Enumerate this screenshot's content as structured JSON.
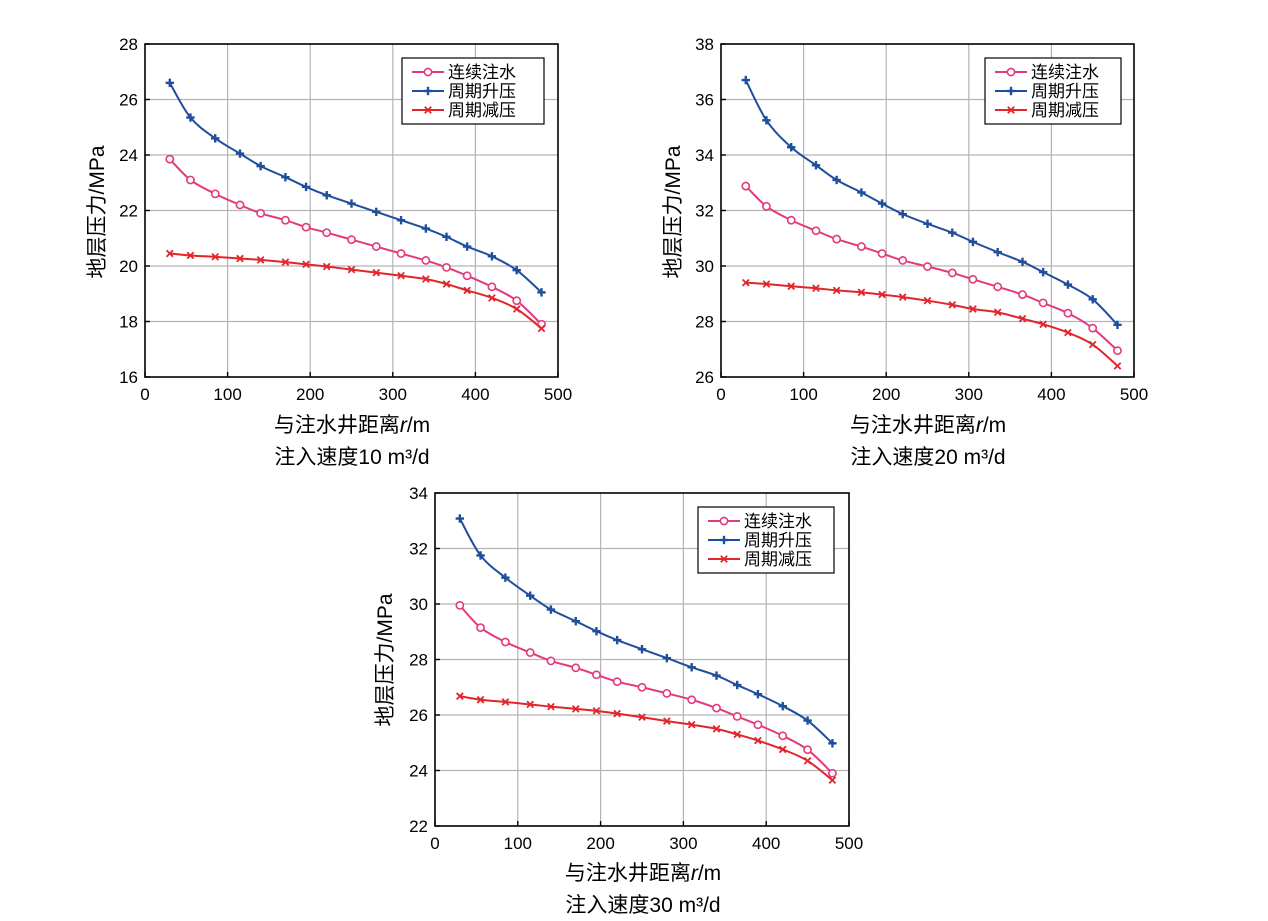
{
  "series_styles": [
    {
      "key": "continuous",
      "color": "#e4397d",
      "marker": "circle"
    },
    {
      "key": "cyclic_up",
      "color": "#1f4e9c",
      "marker": "plus"
    },
    {
      "key": "cyclic_down",
      "color": "#e0262c",
      "marker": "x"
    }
  ],
  "chart_data": [
    {
      "type": "line",
      "title": "",
      "xlabel_prefix": "与注水井距离",
      "xlabel_var": "r",
      "xlabel_unit": "/m",
      "subtitle": "注入速度10 m³/d",
      "ylabel": "地层压力/MPa",
      "xlim": [
        0,
        500
      ],
      "ylim": [
        16,
        28
      ],
      "xticks": [
        0,
        100,
        200,
        300,
        400,
        500
      ],
      "yticks": [
        16,
        18,
        20,
        22,
        24,
        26,
        28
      ],
      "grid": true,
      "legend": "top-right",
      "x": [
        30,
        55,
        85,
        115,
        140,
        170,
        195,
        220,
        250,
        280,
        310,
        340,
        365,
        390,
        420,
        450,
        480
      ],
      "series": [
        {
          "name": "连续注水",
          "values": [
            23.85,
            23.1,
            22.6,
            22.2,
            21.9,
            21.65,
            21.4,
            21.2,
            20.95,
            20.7,
            20.45,
            20.2,
            19.95,
            19.65,
            19.25,
            18.75,
            17.9
          ]
        },
        {
          "name": "周期升压",
          "values": [
            26.6,
            25.35,
            24.6,
            24.05,
            23.6,
            23.2,
            22.85,
            22.55,
            22.25,
            21.95,
            21.65,
            21.35,
            21.05,
            20.7,
            20.35,
            19.85,
            19.05
          ]
        },
        {
          "name": "周期减压",
          "values": [
            20.45,
            20.38,
            20.33,
            20.27,
            20.22,
            20.14,
            20.06,
            19.98,
            19.87,
            19.76,
            19.65,
            19.53,
            19.35,
            19.12,
            18.85,
            18.45,
            17.75
          ]
        }
      ]
    },
    {
      "type": "line",
      "title": "",
      "xlabel_prefix": "与注水井距离",
      "xlabel_var": "r",
      "xlabel_unit": "/m",
      "subtitle": "注入速度20 m³/d",
      "ylabel": "地层压力/MPa",
      "xlim": [
        0,
        500
      ],
      "ylim": [
        26,
        38
      ],
      "xticks": [
        0,
        100,
        200,
        300,
        400,
        500
      ],
      "yticks": [
        26,
        28,
        30,
        32,
        34,
        36,
        38
      ],
      "grid": true,
      "legend": "top-right",
      "x": [
        30,
        55,
        85,
        115,
        140,
        170,
        195,
        220,
        250,
        280,
        305,
        335,
        365,
        390,
        420,
        450,
        480
      ],
      "series": [
        {
          "name": "连续注水",
          "values": [
            32.88,
            32.15,
            31.65,
            31.27,
            30.97,
            30.7,
            30.45,
            30.2,
            29.98,
            29.75,
            29.52,
            29.25,
            28.97,
            28.67,
            28.3,
            27.76,
            26.95
          ]
        },
        {
          "name": "周期升压",
          "values": [
            36.7,
            35.25,
            34.28,
            33.63,
            33.1,
            32.65,
            32.25,
            31.87,
            31.52,
            31.2,
            30.87,
            30.5,
            30.15,
            29.78,
            29.33,
            28.8,
            27.88
          ]
        },
        {
          "name": "周期减压",
          "values": [
            29.4,
            29.35,
            29.27,
            29.2,
            29.12,
            29.05,
            28.97,
            28.88,
            28.75,
            28.6,
            28.45,
            28.33,
            28.1,
            27.9,
            27.6,
            27.17,
            26.4
          ]
        }
      ]
    },
    {
      "type": "line",
      "title": "",
      "xlabel_prefix": "与注水井距离",
      "xlabel_var": "r",
      "xlabel_unit": "/m",
      "subtitle": "注入速度30 m³/d",
      "ylabel": "地层压力/MPa",
      "xlim": [
        0,
        500
      ],
      "ylim": [
        22,
        34
      ],
      "xticks": [
        0,
        100,
        200,
        300,
        400,
        500
      ],
      "yticks": [
        22,
        24,
        26,
        28,
        30,
        32,
        34
      ],
      "grid": true,
      "legend": "top-right",
      "x": [
        30,
        55,
        85,
        115,
        140,
        170,
        195,
        220,
        250,
        280,
        310,
        340,
        365,
        390,
        420,
        450,
        480
      ],
      "series": [
        {
          "name": "连续注水",
          "values": [
            29.95,
            29.15,
            28.63,
            28.25,
            27.95,
            27.7,
            27.45,
            27.2,
            27.0,
            26.78,
            26.55,
            26.25,
            25.95,
            25.65,
            25.25,
            24.75,
            23.9
          ]
        },
        {
          "name": "周期升压",
          "values": [
            33.08,
            31.75,
            30.95,
            30.3,
            29.8,
            29.38,
            29.02,
            28.7,
            28.37,
            28.05,
            27.72,
            27.42,
            27.08,
            26.75,
            26.32,
            25.8,
            24.98
          ]
        },
        {
          "name": "周期减压",
          "values": [
            26.68,
            26.55,
            26.47,
            26.38,
            26.3,
            26.22,
            26.15,
            26.05,
            25.92,
            25.78,
            25.65,
            25.5,
            25.3,
            25.08,
            24.76,
            24.35,
            23.65
          ]
        }
      ]
    }
  ]
}
